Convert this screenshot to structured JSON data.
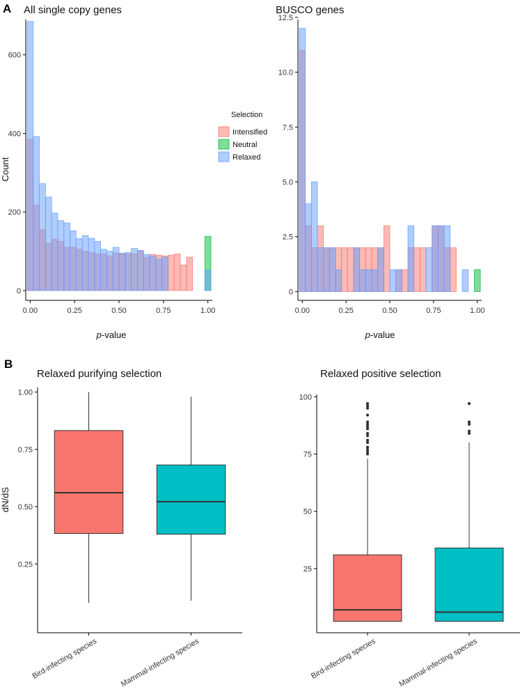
{
  "panel_labels": {
    "a": "A",
    "b": "B"
  },
  "colors": {
    "intensified": "#F8766D",
    "neutral": "#00BA38",
    "relaxed": "#619CFF",
    "bird": "#F8766D",
    "mammal": "#00BFC4",
    "axis": "#000000",
    "median": "#333333"
  },
  "chart_data": [
    {
      "type": "histogram",
      "title": "All single copy genes",
      "xlabel_italic": "p",
      "xlabel_rest": "-value",
      "ylabel": "Count",
      "xlim": [
        -0.025,
        1.025
      ],
      "ylim": [
        -25,
        690
      ],
      "bin_width": 0.0345,
      "xticks": [
        0.0,
        0.25,
        0.5,
        0.75,
        1.0
      ],
      "xtick_labels": [
        "0.00",
        "0.25",
        "0.50",
        "0.75",
        "1.00"
      ],
      "yticks": [
        0,
        200,
        400,
        600
      ],
      "ytick_labels": [
        "0",
        "200",
        "400",
        "600"
      ],
      "bin_centers": [
        0.0,
        0.0345,
        0.069,
        0.1034,
        0.1379,
        0.1724,
        0.2069,
        0.2414,
        0.2759,
        0.3103,
        0.3448,
        0.3793,
        0.4138,
        0.4483,
        0.4828,
        0.5172,
        0.5517,
        0.5862,
        0.6207,
        0.6552,
        0.6897,
        0.7241,
        0.7586,
        0.7931,
        0.8276,
        0.8621,
        0.8966,
        0.931,
        0.9655,
        1.0
      ],
      "series": [
        {
          "name": "Intensified",
          "key": "intensified",
          "values": [
            385,
            217,
            155,
            120,
            130,
            125,
            110,
            110,
            105,
            100,
            97,
            93,
            93,
            88,
            95,
            93,
            93,
            93,
            100,
            85,
            92,
            90,
            88,
            90,
            93,
            65,
            85,
            0,
            0,
            0
          ]
        },
        {
          "name": "Neutral",
          "key": "neutral",
          "values": [
            0,
            0,
            0,
            0,
            0,
            0,
            0,
            0,
            0,
            0,
            0,
            0,
            0,
            0,
            0,
            0,
            0,
            0,
            0,
            0,
            0,
            0,
            0,
            0,
            0,
            0,
            0,
            0,
            0,
            138
          ]
        },
        {
          "name": "Relaxed",
          "key": "relaxed",
          "values": [
            685,
            392,
            272,
            238,
            197,
            178,
            172,
            152,
            132,
            140,
            133,
            125,
            105,
            100,
            110,
            95,
            97,
            107,
            102,
            92,
            88,
            80,
            85,
            0,
            0,
            0,
            0,
            0,
            0,
            52
          ]
        }
      ],
      "legend": {
        "title": "Selection",
        "entries": [
          "Intensified",
          "Neutral",
          "Relaxed"
        ]
      }
    },
    {
      "type": "histogram",
      "title": "BUSCO genes",
      "xlabel_italic": "p",
      "xlabel_rest": "-value",
      "ylabel": "",
      "xlim": [
        -0.025,
        1.025
      ],
      "ylim": [
        -0.4,
        12.4
      ],
      "bin_width": 0.0345,
      "xticks": [
        0.0,
        0.25,
        0.5,
        0.75,
        1.0
      ],
      "xtick_labels": [
        "0.00",
        "0.25",
        "0.50",
        "0.75",
        "1.00"
      ],
      "yticks": [
        0,
        2.5,
        5.0,
        7.5,
        10.0,
        12.5
      ],
      "ytick_labels": [
        "0",
        "2.5",
        "5.0",
        "7.5",
        "10.0",
        "12.5"
      ],
      "bin_centers": [
        0.0,
        0.0345,
        0.069,
        0.1034,
        0.1379,
        0.1724,
        0.2069,
        0.2414,
        0.2759,
        0.3103,
        0.3448,
        0.3793,
        0.4138,
        0.4483,
        0.4828,
        0.5172,
        0.5517,
        0.5862,
        0.6207,
        0.6552,
        0.6897,
        0.7241,
        0.7586,
        0.7931,
        0.8276,
        0.8621,
        0.8966,
        0.931,
        0.9655,
        1.0
      ],
      "series": [
        {
          "name": "Intensified",
          "key": "intensified",
          "values": [
            11,
            3,
            2,
            3,
            2,
            2,
            2,
            2,
            2,
            2,
            2,
            2,
            2,
            2,
            3,
            0,
            1,
            1,
            2,
            2,
            2,
            0,
            3,
            3,
            2,
            2,
            0,
            0,
            0,
            0
          ]
        },
        {
          "name": "Neutral",
          "key": "neutral",
          "values": [
            0,
            0,
            0,
            0,
            0,
            0,
            0,
            0,
            0,
            0,
            0,
            0,
            0,
            0,
            0,
            0,
            0,
            0,
            0,
            0,
            0,
            0,
            0,
            0,
            0,
            0,
            0,
            0,
            0,
            1
          ]
        },
        {
          "name": "Relaxed",
          "key": "relaxed",
          "values": [
            12,
            4,
            5,
            2,
            2,
            2,
            1,
            0,
            0,
            2,
            1,
            1,
            1,
            2,
            0,
            1,
            1,
            0,
            3,
            0,
            0,
            2,
            3,
            3,
            3,
            0,
            0,
            1,
            0,
            0
          ]
        }
      ]
    },
    {
      "type": "boxplot",
      "title": "Relaxed purifying selection",
      "ylabel": "dN/dS",
      "ylim": [
        -0.05,
        1.02
      ],
      "yticks": [
        0.25,
        0.5,
        0.75,
        1.0
      ],
      "ytick_labels": [
        "0.25",
        "0.50",
        "0.75",
        "1.00"
      ],
      "categories": [
        "Bird-infecting species",
        "Mammal-infecting species"
      ],
      "boxes": [
        {
          "name": "Bird-infecting species",
          "key": "bird",
          "min": 0.08,
          "q1": 0.383,
          "median": 0.561,
          "q3": 0.832,
          "max": 1.0,
          "outliers": []
        },
        {
          "name": "Mammal-infecting species",
          "key": "mammal",
          "min": 0.09,
          "q1": 0.38,
          "median": 0.522,
          "q3": 0.682,
          "max": 0.98,
          "outliers": []
        }
      ]
    },
    {
      "type": "boxplot",
      "title": "Relaxed positive selection",
      "ylabel": "",
      "ylim": [
        -3,
        101
      ],
      "yticks": [
        25,
        50,
        75,
        100
      ],
      "ytick_labels": [
        "25",
        "50",
        "75",
        "100"
      ],
      "categories": [
        "Bird-infecting species",
        "Mammal-infecting species"
      ],
      "boxes": [
        {
          "name": "Bird-infecting species",
          "key": "bird",
          "min": 2,
          "q1": 2,
          "median": 7,
          "q3": 31,
          "max": 73,
          "outliers": [
            75,
            76,
            77,
            78,
            80,
            81,
            83,
            84,
            86,
            87,
            88,
            89,
            92,
            95,
            96,
            97
          ]
        },
        {
          "name": "Mammal-infecting species",
          "key": "mammal",
          "min": 2,
          "q1": 2,
          "median": 6,
          "q3": 34,
          "max": 80,
          "outliers": [
            84,
            85,
            88,
            89,
            97
          ]
        }
      ]
    }
  ]
}
